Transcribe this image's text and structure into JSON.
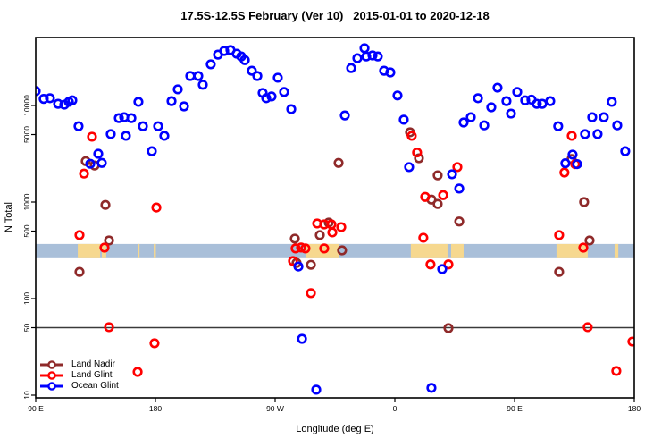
{
  "title": "17.5S-12.5S February (Ver 10)   2015-01-01 to 2020-12-18",
  "legend": {
    "items": [
      {
        "label": "Land Nadir",
        "color": "#8f2a2a"
      },
      {
        "label": "Land Glint",
        "color": "#ff0000"
      },
      {
        "label": "Ocean Glint",
        "color": "#0000ff"
      }
    ]
  },
  "chart_data": {
    "type": "scatter",
    "title": "17.5S-12.5S February (Ver 10)   2015-01-01 to 2020-12-18",
    "xlabel": "Longitude (deg E)",
    "ylabel": "N Total",
    "x_axis": {
      "scale": "linear",
      "range": [
        90,
        540
      ],
      "note": "longitude unwrapped eastward from 90E; ticks wrap around the globe",
      "ticks": [
        {
          "value": 90,
          "label": "90 E"
        },
        {
          "value": 180,
          "label": "180"
        },
        {
          "value": 270,
          "label": "90 W"
        },
        {
          "value": 360,
          "label": "0"
        },
        {
          "value": 450,
          "label": "90 E"
        },
        {
          "value": 540,
          "label": "180"
        }
      ]
    },
    "y_axis": {
      "scale": "log",
      "range": [
        9.4,
        50000
      ],
      "ticks": [
        {
          "value": 10,
          "label": "10"
        },
        {
          "value": 50,
          "label": "50"
        },
        {
          "value": 100,
          "label": "100"
        },
        {
          "value": 500,
          "label": "500"
        },
        {
          "value": 1000,
          "label": "1000"
        },
        {
          "value": 5000,
          "label": "5000"
        },
        {
          "value": 10000,
          "label": "10000"
        }
      ]
    },
    "reference_line_y": 50,
    "surface_band": {
      "n_range": [
        262,
        368
      ],
      "ocean_color": "#a9bfd9",
      "land_color": "#f6d88f",
      "land_lon_ranges": [
        [
          121.6,
          138.4
        ],
        [
          139.7,
          143.0
        ],
        [
          166.6,
          168.0
        ],
        [
          178.7,
          180.3
        ],
        [
          293.5,
          317.7
        ],
        [
          372.0,
          399.6
        ],
        [
          402.3,
          411.7
        ],
        [
          481.5,
          505.0
        ],
        [
          525.2,
          528.0
        ]
      ]
    },
    "series": [
      {
        "name": "Land Nadir",
        "color": "#8f2a2a",
        "points": [
          [
            127.6,
            2650
          ],
          [
            134.3,
            2390
          ],
          [
            142.4,
            934
          ],
          [
            145.1,
            400
          ],
          [
            122.9,
            189
          ],
          [
            284.8,
            418
          ],
          [
            286.1,
            234
          ],
          [
            296.9,
            224
          ],
          [
            303.6,
            455
          ],
          [
            310.3,
            613
          ],
          [
            317.7,
            2540
          ],
          [
            320.3,
            316
          ],
          [
            371.4,
            5280
          ],
          [
            378.1,
            2840
          ],
          [
            392.2,
            1890
          ],
          [
            387.5,
            1060
          ],
          [
            392.2,
            955
          ],
          [
            408.4,
            629
          ],
          [
            400.3,
            49.5
          ],
          [
            483.5,
            189
          ],
          [
            492.9,
            2790
          ],
          [
            502.3,
            1000
          ],
          [
            506.4,
            400
          ]
        ]
      },
      {
        "name": "Land Glint",
        "color": "#ff0000",
        "points": [
          [
            132.3,
            4750
          ],
          [
            126.3,
            1970
          ],
          [
            122.9,
            455
          ],
          [
            141.7,
            337
          ],
          [
            145.1,
            50.6
          ],
          [
            166.6,
            17.4
          ],
          [
            179.3,
            34.5
          ],
          [
            180.7,
            878
          ],
          [
            283.4,
            245
          ],
          [
            285.4,
            331
          ],
          [
            289.5,
            338
          ],
          [
            292.8,
            331
          ],
          [
            301.6,
            600
          ],
          [
            306.9,
            587
          ],
          [
            312.3,
            587
          ],
          [
            319.7,
            550
          ],
          [
            313.0,
            485
          ],
          [
            306.9,
            331
          ],
          [
            296.9,
            114
          ],
          [
            372.7,
            4850
          ],
          [
            376.7,
            3260
          ],
          [
            381.4,
            427
          ],
          [
            386.8,
            226
          ],
          [
            400.3,
            226
          ],
          [
            382.8,
            1130
          ],
          [
            396.3,
            1180
          ],
          [
            407.0,
            2300
          ],
          [
            483.5,
            455
          ],
          [
            487.5,
            2020
          ],
          [
            495.6,
            2470
          ],
          [
            493.0,
            4850
          ],
          [
            501.7,
            337
          ],
          [
            505.0,
            50.6
          ],
          [
            526.5,
            17.8
          ],
          [
            538.6,
            35.9
          ]
        ]
      },
      {
        "name": "Ocean Glint",
        "color": "#0000ff",
        "points": [
          [
            90.0,
            14100
          ],
          [
            96.0,
            11700
          ],
          [
            100.7,
            11900
          ],
          [
            106.8,
            10400
          ],
          [
            111.5,
            10200
          ],
          [
            114.9,
            10900
          ],
          [
            117.5,
            11300
          ],
          [
            122.2,
            6100
          ],
          [
            137.0,
            3160
          ],
          [
            131.0,
            2490
          ],
          [
            139.7,
            2540
          ],
          [
            146.4,
            5060
          ],
          [
            152.5,
            7400
          ],
          [
            156.5,
            7560
          ],
          [
            161.9,
            7400
          ],
          [
            167.2,
            10900
          ],
          [
            157.8,
            4850
          ],
          [
            170.6,
            6100
          ],
          [
            177.3,
            3360
          ],
          [
            182.0,
            6100
          ],
          [
            186.7,
            4850
          ],
          [
            192.1,
            11100
          ],
          [
            196.8,
            14700
          ],
          [
            201.5,
            9790
          ],
          [
            206.2,
            20200
          ],
          [
            212.2,
            20200
          ],
          [
            215.6,
            16400
          ],
          [
            221.6,
            26700
          ],
          [
            227.0,
            33600
          ],
          [
            231.7,
            36700
          ],
          [
            236.4,
            37500
          ],
          [
            241.1,
            34400
          ],
          [
            244.5,
            32200
          ],
          [
            247.2,
            29500
          ],
          [
            252.5,
            22900
          ],
          [
            256.6,
            20200
          ],
          [
            260.6,
            13500
          ],
          [
            263.3,
            11900
          ],
          [
            267.3,
            12400
          ],
          [
            272.0,
            19400
          ],
          [
            276.7,
            13800
          ],
          [
            282.1,
            9170
          ],
          [
            287.5,
            215
          ],
          [
            290.2,
            38.3
          ],
          [
            300.9,
            11.4
          ],
          [
            322.4,
            7890
          ],
          [
            327.1,
            24400
          ],
          [
            331.8,
            30900
          ],
          [
            337.2,
            39200
          ],
          [
            338.5,
            32200
          ],
          [
            343.2,
            33000
          ],
          [
            347.2,
            32200
          ],
          [
            351.9,
            22900
          ],
          [
            356.6,
            22000
          ],
          [
            362.0,
            12700
          ],
          [
            366.7,
            7130
          ],
          [
            370.7,
            2300
          ],
          [
            387.5,
            11.9
          ],
          [
            395.6,
            202
          ],
          [
            403.0,
            1940
          ],
          [
            408.4,
            1380
          ],
          [
            411.7,
            6670
          ],
          [
            417.1,
            7560
          ],
          [
            422.5,
            11900
          ],
          [
            427.2,
            6230
          ],
          [
            432.5,
            9580
          ],
          [
            437.2,
            15300
          ],
          [
            443.9,
            11100
          ],
          [
            447.3,
            8240
          ],
          [
            452.0,
            13800
          ],
          [
            458.0,
            11300
          ],
          [
            462.7,
            11500
          ],
          [
            466.7,
            10400
          ],
          [
            470.8,
            10400
          ],
          [
            476.8,
            11100
          ],
          [
            482.8,
            6100
          ],
          [
            488.2,
            2520
          ],
          [
            493.6,
            3100
          ],
          [
            497.0,
            2470
          ],
          [
            503.0,
            5060
          ],
          [
            508.4,
            7560
          ],
          [
            512.4,
            5060
          ],
          [
            517.1,
            7560
          ],
          [
            523.1,
            10900
          ],
          [
            527.2,
            6230
          ],
          [
            533.2,
            3360
          ]
        ]
      }
    ]
  }
}
